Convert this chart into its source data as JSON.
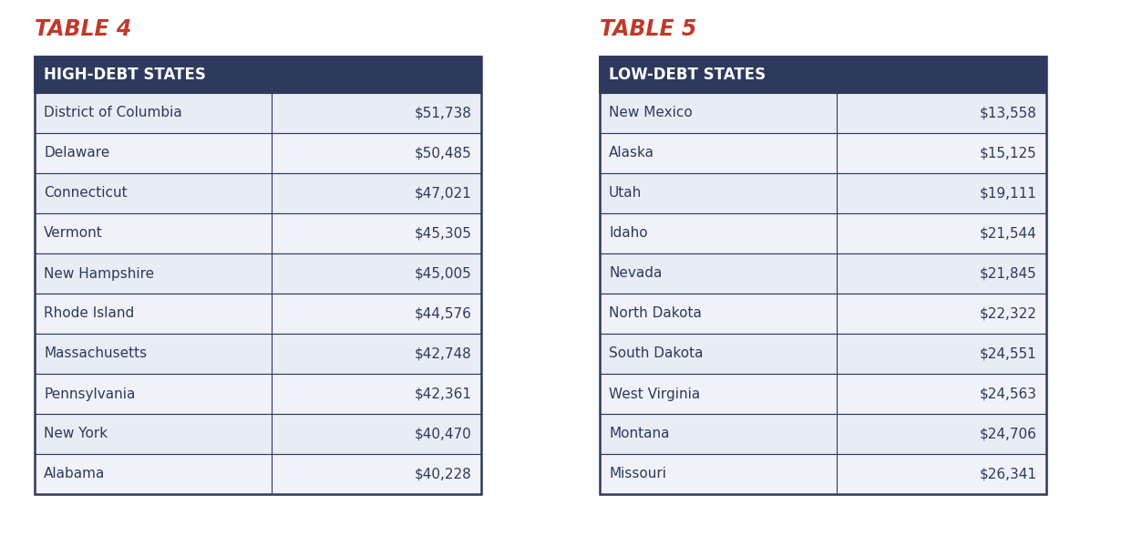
{
  "table4_title": "TABLE 4",
  "table5_title": "TABLE 5",
  "table4_header": "HIGH-DEBT STATES",
  "table5_header": "LOW-DEBT STATES",
  "table4_rows": [
    [
      "District of Columbia",
      "$51,738"
    ],
    [
      "Delaware",
      "$50,485"
    ],
    [
      "Connecticut",
      "$47,021"
    ],
    [
      "Vermont",
      "$45,305"
    ],
    [
      "New Hampshire",
      "$45,005"
    ],
    [
      "Rhode Island",
      "$44,576"
    ],
    [
      "Massachusetts",
      "$42,748"
    ],
    [
      "Pennsylvania",
      "$42,361"
    ],
    [
      "New York",
      "$40,470"
    ],
    [
      "Alabama",
      "$40,228"
    ]
  ],
  "table5_rows": [
    [
      "New Mexico",
      "$13,558"
    ],
    [
      "Alaska",
      "$15,125"
    ],
    [
      "Utah",
      "$19,111"
    ],
    [
      "Idaho",
      "$21,544"
    ],
    [
      "Nevada",
      "$21,845"
    ],
    [
      "North Dakota",
      "$22,322"
    ],
    [
      "South Dakota",
      "$24,551"
    ],
    [
      "West Virginia",
      "$24,563"
    ],
    [
      "Montana",
      "$24,706"
    ],
    [
      "Missouri",
      "$26,341"
    ]
  ],
  "title_color": "#c0392b",
  "header_bg_color": "#2d3a5e",
  "header_text_color": "#ffffff",
  "row_even_color": "#e8ecf4",
  "row_odd_color": "#f0f2f8",
  "cell_text_color": "#2d3a5e",
  "border_color": "#2d3a5e",
  "bg_color": "#ffffff",
  "title_fontsize": 17,
  "header_fontsize": 12,
  "row_fontsize": 11,
  "fig_width": 12.42,
  "fig_height": 5.89,
  "dpi": 100
}
